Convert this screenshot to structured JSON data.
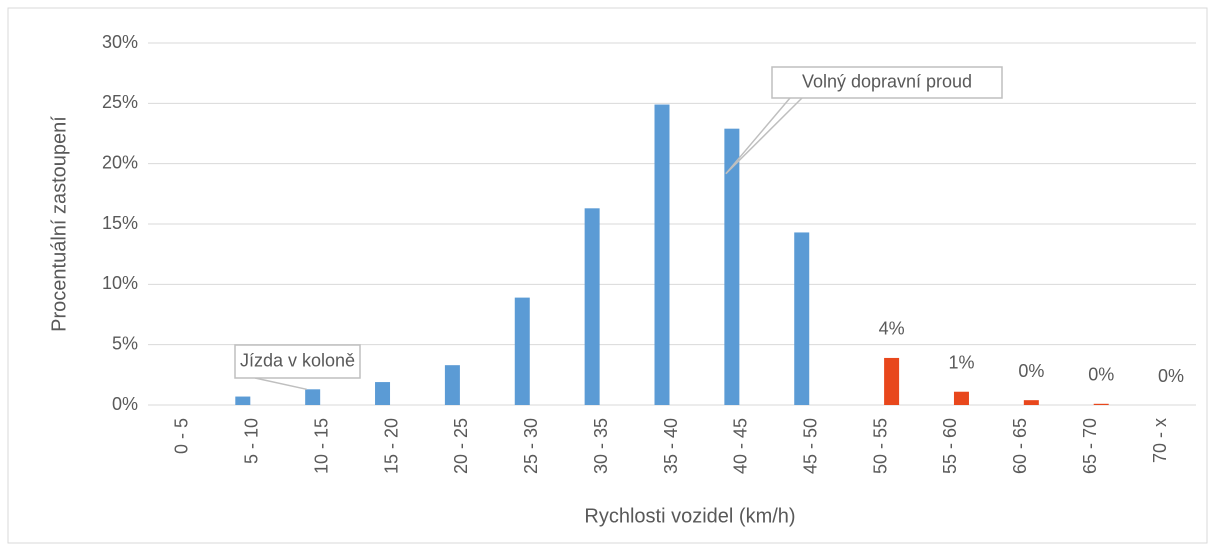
{
  "chart_data": {
    "type": "bar",
    "x_label": "Rychlosti vozidel (km/h)",
    "y_label": "Procentuální zastoupení",
    "categories": [
      "0 - 5",
      "5 - 10",
      "10 - 15",
      "15 - 20",
      "20 - 25",
      "25 - 30",
      "30 - 35",
      "35 - 40",
      "40 - 45",
      "45 - 50",
      "50 - 55",
      "55 - 60",
      "60 - 65",
      "65 - 70",
      "70 - x"
    ],
    "series": [
      {
        "color": "#5b9bd5",
        "values": [
          0,
          0.7,
          1.3,
          1.9,
          3.3,
          8.9,
          16.3,
          24.9,
          22.9,
          14.3,
          null,
          null,
          null,
          null,
          null
        ]
      },
      {
        "color": "#e8471c",
        "values": [
          null,
          null,
          null,
          null,
          null,
          null,
          null,
          null,
          null,
          null,
          3.9,
          1.1,
          0.4,
          0.1,
          0
        ],
        "value_labels": [
          null,
          null,
          null,
          null,
          null,
          null,
          null,
          null,
          null,
          null,
          "4%",
          "1%",
          "0%",
          "0%",
          "0%"
        ]
      }
    ],
    "ylim": [
      0,
      30
    ],
    "yticks": [
      {
        "value": 0,
        "label": "0%"
      },
      {
        "value": 5,
        "label": "5%"
      },
      {
        "value": 10,
        "label": "10%"
      },
      {
        "value": 15,
        "label": "15%"
      },
      {
        "value": 20,
        "label": "20%"
      },
      {
        "value": 25,
        "label": "25%"
      },
      {
        "value": 30,
        "label": "30%"
      }
    ],
    "grid": true,
    "annotations": [
      {
        "text": "Jízda v koloně",
        "category": 2
      },
      {
        "text": "Volný dopravní proud",
        "category": 8
      }
    ]
  }
}
